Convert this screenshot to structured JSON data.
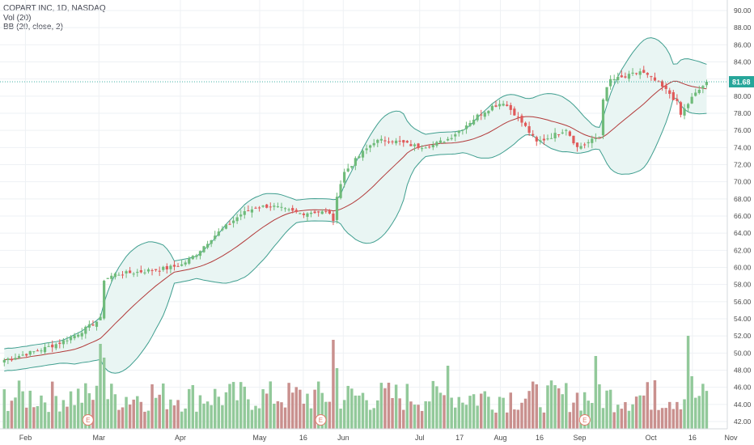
{
  "legend": {
    "symbol": "COPART INC, 1D, NASDAQ",
    "volume": "Vol (20)",
    "bollinger": "BB (20, close, 2)"
  },
  "colors": {
    "up": "#6fbb7a",
    "down": "#e05a5a",
    "volume_up": "#92c99a",
    "volume_down": "#c9908e",
    "bb_band": "#3f9e8f",
    "bb_basis": "#b23a3a",
    "bb_fill": "#e9f5f3",
    "last_price": "#26a69a",
    "grid": "#eef1f4",
    "earnings_marker": "#e07b6a"
  },
  "chart_data": {
    "type": "candlestick",
    "y_ticks": [
      "90.00",
      "88.00",
      "86.00",
      "84.00",
      "82.00",
      "80.00",
      "78.00",
      "76.00",
      "74.00",
      "72.00",
      "70.00",
      "68.00",
      "66.00",
      "64.00",
      "62.00",
      "60.00",
      "58.00",
      "56.00",
      "54.00",
      "52.00",
      "50.00",
      "48.00",
      "46.00",
      "44.00",
      "42.00"
    ],
    "ylim": [
      41,
      91
    ],
    "x_ticks": [
      {
        "label": "Feb",
        "t": 0.035
      },
      {
        "label": "Mar",
        "t": 0.136
      },
      {
        "label": "Apr",
        "t": 0.248
      },
      {
        "label": "May",
        "t": 0.357
      },
      {
        "label": "16",
        "t": 0.417
      },
      {
        "label": "Jun",
        "t": 0.472
      },
      {
        "label": "Jul",
        "t": 0.577
      },
      {
        "label": "17",
        "t": 0.632
      },
      {
        "label": "Aug",
        "t": 0.688
      },
      {
        "label": "16",
        "t": 0.742
      },
      {
        "label": "Sep",
        "t": 0.797
      },
      {
        "label": "Oct",
        "t": 0.895
      },
      {
        "label": "16",
        "t": 0.952
      },
      {
        "label": "Nov",
        "t": 1.005
      }
    ],
    "last_price": "81.68",
    "last_price_value": 81.68,
    "earnings_markers": [
      {
        "label": "E",
        "t": 0.121
      },
      {
        "label": "E",
        "t": 0.441
      },
      {
        "label": "E",
        "t": 0.804
      }
    ],
    "close_keypoints": [
      [
        0,
        49.2
      ],
      [
        5,
        49.8
      ],
      [
        10,
        50.4
      ],
      [
        15,
        51.2
      ],
      [
        20,
        52.3
      ],
      [
        24,
        53.4
      ],
      [
        26,
        54.0
      ],
      [
        27,
        58.6
      ],
      [
        30,
        59.2
      ],
      [
        35,
        59.4
      ],
      [
        40,
        59.7
      ],
      [
        44,
        59.9
      ],
      [
        48,
        60.3
      ],
      [
        52,
        61.6
      ],
      [
        56,
        63.4
      ],
      [
        60,
        64.8
      ],
      [
        64,
        66.2
      ],
      [
        68,
        67.0
      ],
      [
        72,
        67.2
      ],
      [
        76,
        66.7
      ],
      [
        80,
        66.3
      ],
      [
        84,
        66.5
      ],
      [
        88,
        66.4
      ],
      [
        89,
        65.2
      ],
      [
        90,
        68.5
      ],
      [
        92,
        71.1
      ],
      [
        96,
        73.0
      ],
      [
        100,
        74.7
      ],
      [
        104,
        74.9
      ],
      [
        108,
        74.5
      ],
      [
        112,
        74.1
      ],
      [
        116,
        74.3
      ],
      [
        120,
        75.0
      ],
      [
        124,
        76.3
      ],
      [
        128,
        77.7
      ],
      [
        132,
        78.8
      ],
      [
        135,
        79.3
      ],
      [
        138,
        78.0
      ],
      [
        141,
        76.4
      ],
      [
        144,
        74.6
      ],
      [
        148,
        75.3
      ],
      [
        152,
        76.2
      ],
      [
        155,
        74.0
      ],
      [
        158,
        74.6
      ],
      [
        161,
        75.3
      ],
      [
        162,
        79.8
      ],
      [
        164,
        81.9
      ],
      [
        168,
        82.2
      ],
      [
        172,
        82.9
      ],
      [
        176,
        81.8
      ],
      [
        180,
        80.3
      ],
      [
        182,
        79.2
      ],
      [
        183,
        77.8
      ],
      [
        186,
        79.8
      ],
      [
        190,
        81.68
      ]
    ],
    "volume_ylim": [
      0,
      100
    ],
    "volume_scale_note": ""
  }
}
